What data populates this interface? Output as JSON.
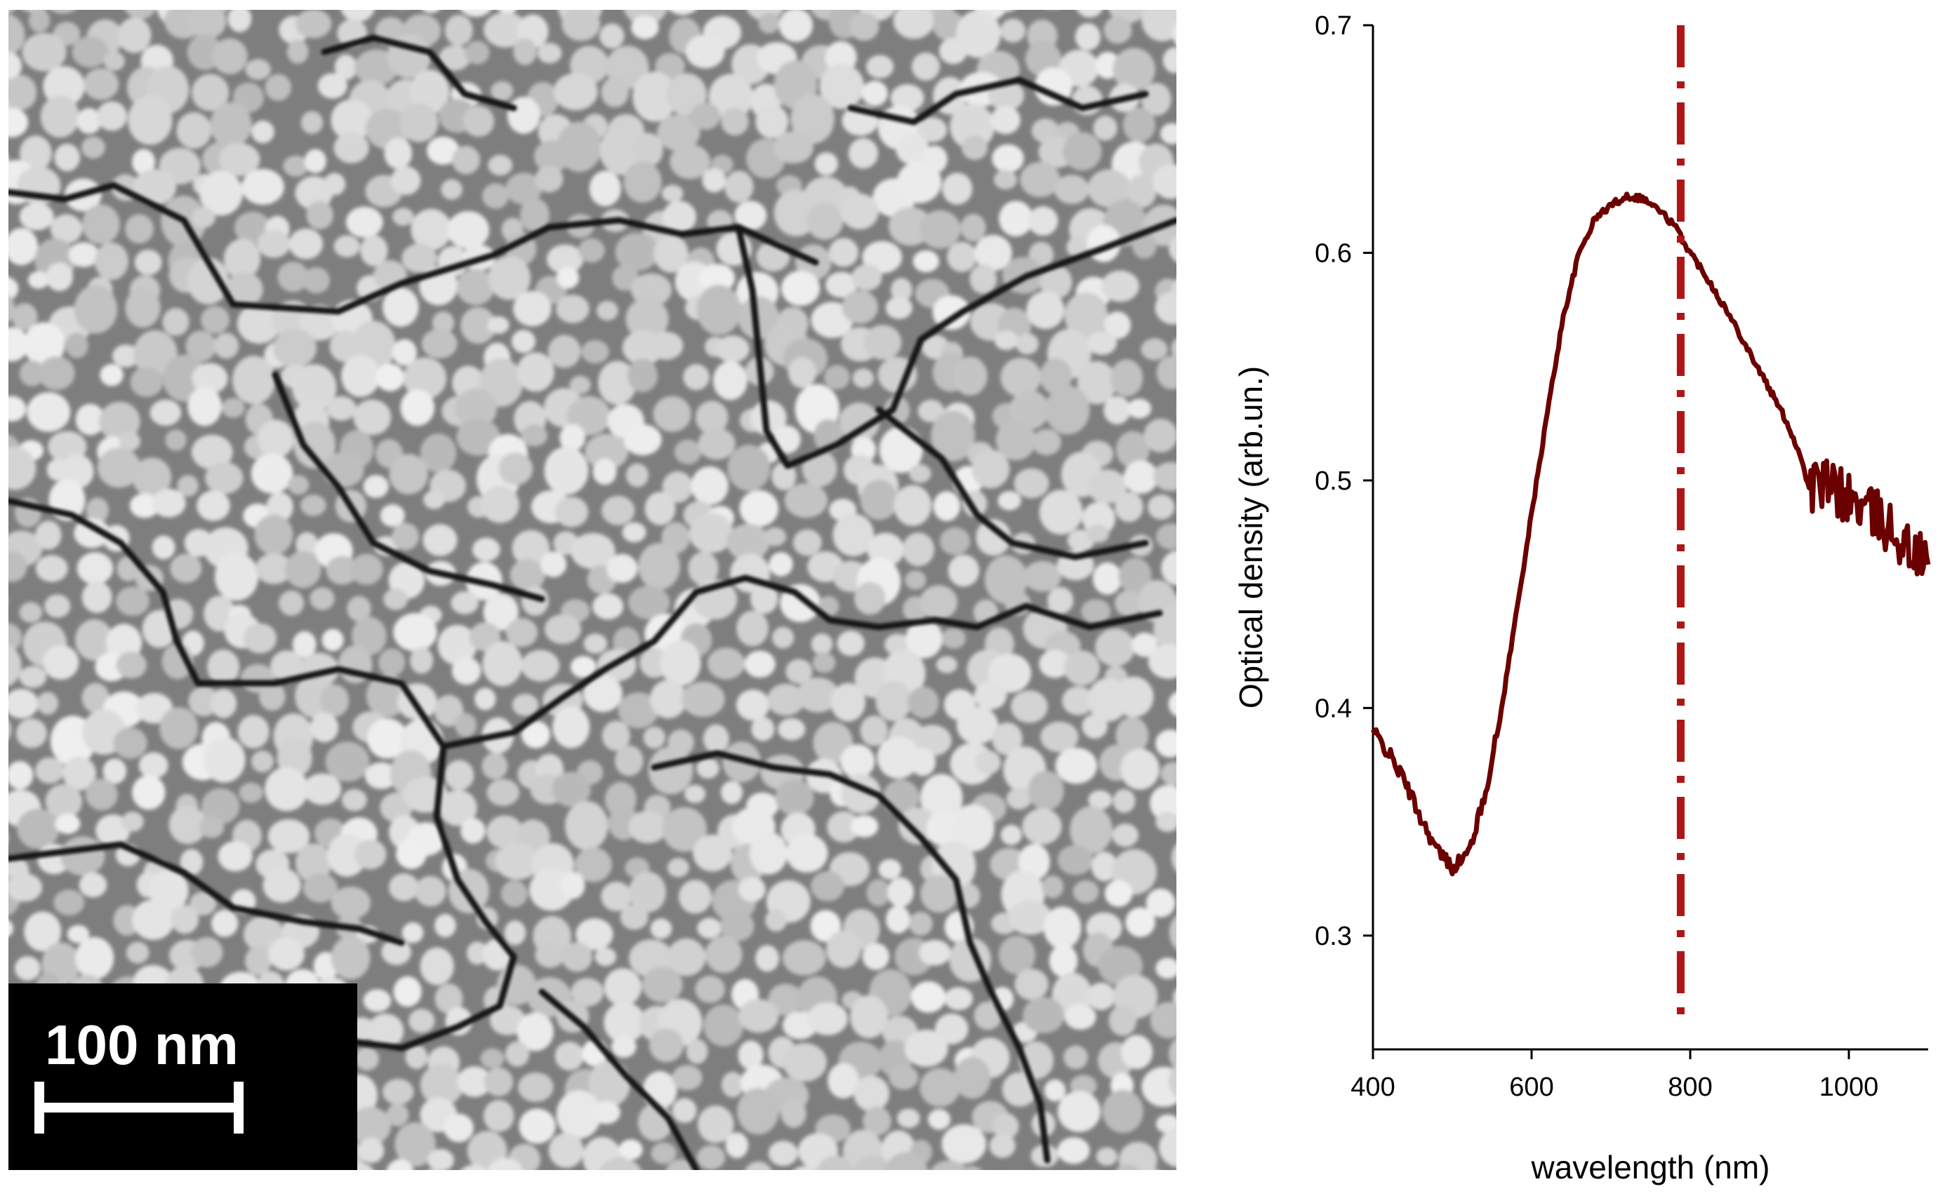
{
  "sem_image": {
    "scale_bar_label": "100 nm"
  },
  "colors": {
    "curve": "#6b0000",
    "marker_line": "#b01515",
    "scale_box": "#000000"
  },
  "chart_data": {
    "type": "line",
    "title": "",
    "xlabel": "wavelength (nm)",
    "ylabel": "Optical density (arb.un.)",
    "xlim": [
      400,
      1100
    ],
    "ylim": [
      0.25,
      0.7
    ],
    "x_ticks": [
      400,
      600,
      800,
      1000
    ],
    "y_ticks": [
      0.3,
      0.4,
      0.5,
      0.6,
      0.7
    ],
    "x_tick_labels": [
      "400",
      "600",
      "800",
      "1000"
    ],
    "y_tick_labels": [
      "0.3",
      "0.4",
      "0.5",
      "0.6",
      "0.7"
    ],
    "marker_x": 788,
    "series": [
      {
        "name": "optical density",
        "x": [
          400,
          420,
          440,
          460,
          480,
          500,
          520,
          540,
          560,
          580,
          600,
          620,
          640,
          660,
          680,
          700,
          720,
          740,
          760,
          780,
          800,
          820,
          840,
          860,
          880,
          900,
          920,
          940,
          950,
          960,
          980,
          1000,
          1020,
          1040,
          1060,
          1080,
          1100
        ],
        "y": [
          0.39,
          0.38,
          0.368,
          0.352,
          0.338,
          0.33,
          0.336,
          0.36,
          0.395,
          0.44,
          0.485,
          0.53,
          0.572,
          0.6,
          0.615,
          0.621,
          0.625,
          0.624,
          0.619,
          0.612,
          0.6,
          0.59,
          0.578,
          0.566,
          0.553,
          0.54,
          0.527,
          0.51,
          0.496,
          0.499,
          0.496,
          0.492,
          0.487,
          0.483,
          0.476,
          0.468,
          0.463
        ]
      }
    ]
  }
}
